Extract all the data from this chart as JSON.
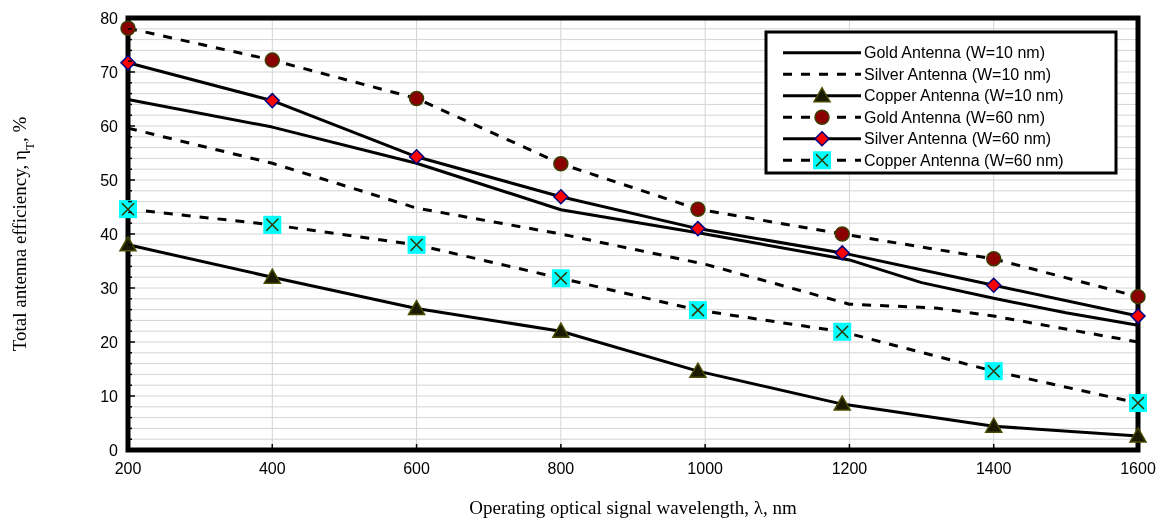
{
  "chart_data": {
    "type": "line",
    "xlabel": "Operating optical signal wavelength, λ, nm",
    "ylabel": "Total antenna efficiency, η$_{T}$, %",
    "xlim": [
      200,
      1600
    ],
    "xticks": [
      200,
      400,
      600,
      800,
      1000,
      1200,
      1400,
      1600
    ],
    "ylim": [
      0,
      80
    ],
    "yticks": [
      0,
      {
        "value": 2,
        "label": null
      },
      {
        "value": 4,
        "label": null
      },
      {
        "value": 6,
        "label": null
      },
      {
        "value": 8,
        "label": null
      },
      10,
      {
        "value": 12,
        "label": null
      },
      {
        "value": 14,
        "label": null
      },
      {
        "value": 16,
        "label": null
      },
      {
        "value": 18,
        "label": null
      },
      20,
      {
        "value": 22,
        "label": null
      },
      {
        "value": 24,
        "label": null
      },
      {
        "value": 26,
        "label": null
      },
      {
        "value": 28,
        "label": null
      },
      30,
      {
        "value": 32,
        "label": null
      },
      {
        "value": 34,
        "label": null
      },
      {
        "value": 36,
        "label": null
      },
      {
        "value": 38,
        "label": null
      },
      40,
      {
        "value": 42,
        "label": null
      },
      {
        "value": 44,
        "label": null
      },
      {
        "value": 46,
        "label": null
      },
      {
        "value": 48,
        "label": null
      },
      50,
      {
        "value": 52,
        "label": null
      },
      {
        "value": 54,
        "label": null
      },
      {
        "value": 56,
        "label": null
      },
      {
        "value": 58,
        "label": null
      },
      60,
      {
        "value": 62,
        "label": null
      },
      {
        "value": 64,
        "label": null
      },
      {
        "value": 66,
        "label": null
      },
      {
        "value": 68,
        "label": null
      },
      70,
      {
        "value": 72,
        "label": null
      },
      {
        "value": 74,
        "label": null
      },
      {
        "value": 76,
        "label": null
      },
      {
        "value": 78,
        "label": null
      },
      80
    ],
    "grid": true,
    "legend": "top right",
    "series": [
      {
        "name": "Gold Antenna (W=10 nm)",
        "color": "#000000",
        "marker": "none",
        "line_style": "solid",
        "x": [
          200,
          400,
          600,
          800,
          1000,
          1200,
          1300,
          1400,
          1500,
          1600
        ],
        "values": [
          64.9,
          59.8,
          53.1,
          44.5,
          40,
          35.2,
          31,
          28.1,
          25.4,
          23.1
        ]
      },
      {
        "name": "Silver Antenna (W=10 nm)",
        "color": "#000000",
        "marker": "none",
        "line_style": "dashed",
        "x": [
          200,
          400,
          600,
          800,
          1000,
          1200,
          1320,
          1400,
          1600
        ],
        "values": [
          59.6,
          53.1,
          44.8,
          40,
          34.4,
          27,
          26.3,
          24.8,
          20
        ]
      },
      {
        "name": "Copper Antenna (W=10 nm)",
        "color": "#1a1a00",
        "marker": "triangle",
        "line_style": "solid",
        "x": [
          200,
          400,
          600,
          800,
          990,
          1190,
          1400,
          1600
        ],
        "values": [
          38,
          32,
          26.2,
          22,
          14.6,
          8.5,
          4.4,
          2.6
        ]
      },
      {
        "name": "Gold Antenna (W=60 nm)",
        "color": "#8b0000",
        "marker": "circle",
        "line_style": "dashed",
        "x": [
          200,
          400,
          600,
          800,
          990,
          1190,
          1400,
          1600
        ],
        "values": [
          78.1,
          72.2,
          65.1,
          53,
          44.6,
          40,
          35.4,
          28.4
        ]
      },
      {
        "name": "Silver Antenna (W=60 nm)",
        "color": "#ff0000",
        "marker": "diamond",
        "line_style": "solid",
        "x": [
          200,
          400,
          600,
          800,
          990,
          1190,
          1400,
          1600
        ],
        "values": [
          71.7,
          64.7,
          54.3,
          46.9,
          41,
          36.5,
          30.5,
          24.8
        ]
      },
      {
        "name": "Copper Antenna (W=60 nm)",
        "color": "#00ffff",
        "marker": "square",
        "line_style": "dashed",
        "x": [
          200,
          400,
          600,
          800,
          990,
          1190,
          1400,
          1600
        ],
        "values": [
          44.6,
          41.7,
          38,
          31.8,
          25.9,
          21.9,
          14.6,
          8.7
        ]
      }
    ]
  }
}
